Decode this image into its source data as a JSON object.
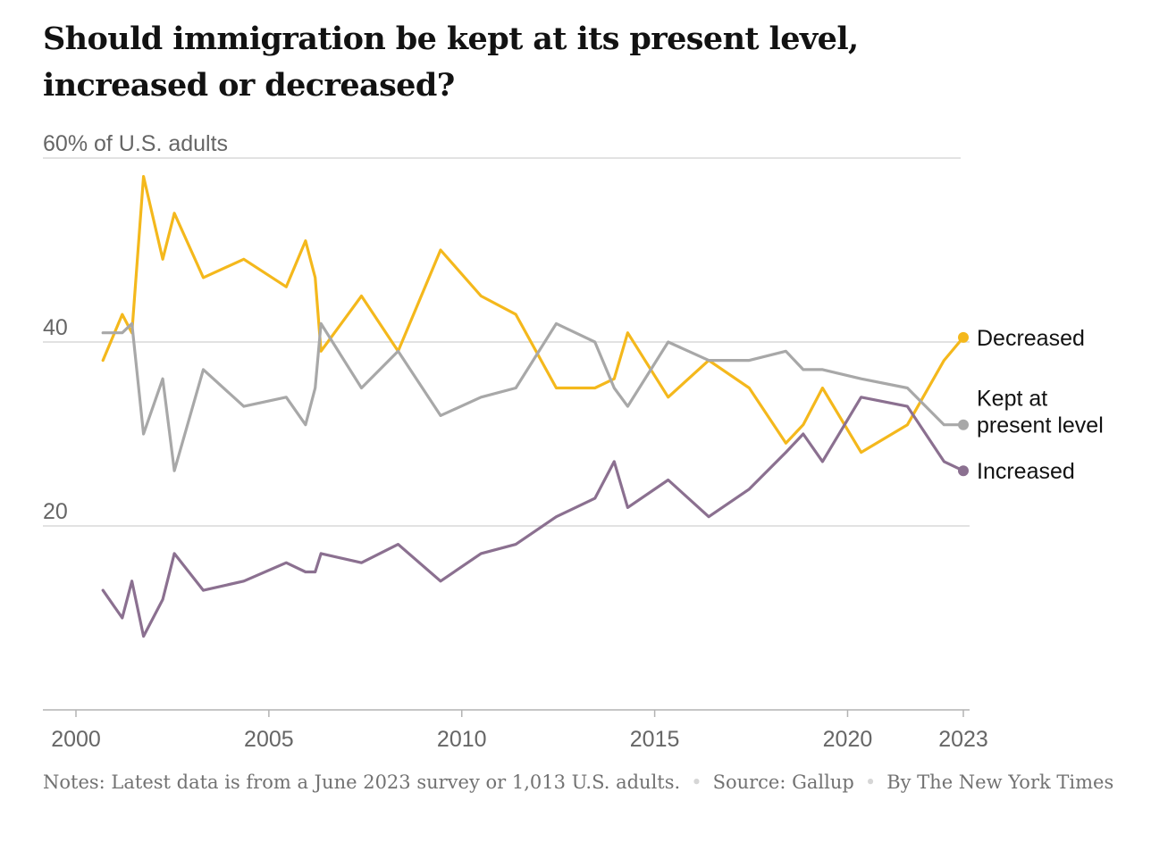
{
  "chart_data": {
    "type": "line",
    "title": "Should immigration be kept at its present level, increased or decreased?",
    "ylabel_unit": "% of U.S. adults",
    "y_ticks": [
      {
        "value": 60,
        "label": "60"
      },
      {
        "value": 40,
        "label": "40"
      },
      {
        "value": 20,
        "label": "20"
      }
    ],
    "x_ticks": [
      "2000",
      "2005",
      "2010",
      "2015",
      "2020",
      "2023"
    ],
    "ylim": [
      0,
      60
    ],
    "xlim": [
      1999.8,
      2023.2
    ],
    "series": [
      {
        "name": "Decreased",
        "color": "#f4b81c",
        "x": [
          2000.7,
          2001.2,
          2001.45,
          2001.75,
          2002.25,
          2002.55,
          2003.3,
          2004.35,
          2005.45,
          2005.95,
          2006.2,
          2006.35,
          2007.4,
          2008.35,
          2009.45,
          2010.5,
          2011.4,
          2012.45,
          2013.45,
          2013.95,
          2014.3,
          2015.35,
          2016.4,
          2017.45,
          2018.4,
          2018.85,
          2019.35,
          2020.35,
          2021.55,
          2022.5,
          2023.0
        ],
        "values": [
          38,
          43,
          41,
          58,
          49,
          54,
          47,
          49,
          46,
          51,
          47,
          39,
          45,
          39,
          50,
          45,
          43,
          35,
          35,
          36,
          41,
          34,
          38,
          35,
          29,
          31,
          35,
          28,
          31,
          38,
          40.5
        ]
      },
      {
        "name": "Kept at present level",
        "color": "#a8a8a8",
        "x": [
          2000.7,
          2001.2,
          2001.45,
          2001.75,
          2002.25,
          2002.55,
          2003.3,
          2004.35,
          2005.45,
          2005.95,
          2006.2,
          2006.35,
          2007.4,
          2008.35,
          2009.45,
          2010.5,
          2011.4,
          2012.45,
          2013.45,
          2013.95,
          2014.3,
          2015.35,
          2016.4,
          2017.45,
          2018.4,
          2018.85,
          2019.35,
          2020.35,
          2021.55,
          2022.5,
          2023.0
        ],
        "values": [
          41,
          41,
          42,
          30,
          36,
          26,
          37,
          33,
          34,
          31,
          35,
          42,
          35,
          39,
          32,
          34,
          35,
          42,
          40,
          35,
          33,
          40,
          38,
          38,
          39,
          37,
          37,
          36,
          35,
          31,
          31
        ]
      },
      {
        "name": "Increased",
        "color": "#8b7090",
        "x": [
          2000.7,
          2001.2,
          2001.45,
          2001.75,
          2002.25,
          2002.55,
          2003.3,
          2004.35,
          2005.45,
          2005.95,
          2006.2,
          2006.35,
          2007.4,
          2008.35,
          2009.45,
          2010.5,
          2011.4,
          2012.45,
          2013.45,
          2013.95,
          2014.3,
          2015.35,
          2016.4,
          2017.45,
          2018.4,
          2018.85,
          2019.35,
          2020.35,
          2021.55,
          2022.5,
          2023.0
        ],
        "values": [
          13,
          10,
          14,
          8,
          12,
          17,
          13,
          14,
          16,
          15,
          15,
          17,
          16,
          18,
          14,
          17,
          18,
          21,
          23,
          27,
          22,
          25,
          21,
          24,
          28,
          30,
          27,
          34,
          33,
          27,
          26
        ]
      }
    ],
    "end_labels": [
      {
        "series": "Decreased",
        "lines": [
          "Decreased"
        ]
      },
      {
        "series": "Kept at present level",
        "lines": [
          "Kept at",
          "present level"
        ]
      },
      {
        "series": "Increased",
        "lines": [
          "Increased"
        ]
      }
    ],
    "grid": true
  },
  "footer": {
    "notes": "Notes: Latest data is from a June 2023 survey or 1,013 U.S. adults.",
    "separator": "•",
    "source": "Source: Gallup",
    "byline": "By The New York Times"
  }
}
